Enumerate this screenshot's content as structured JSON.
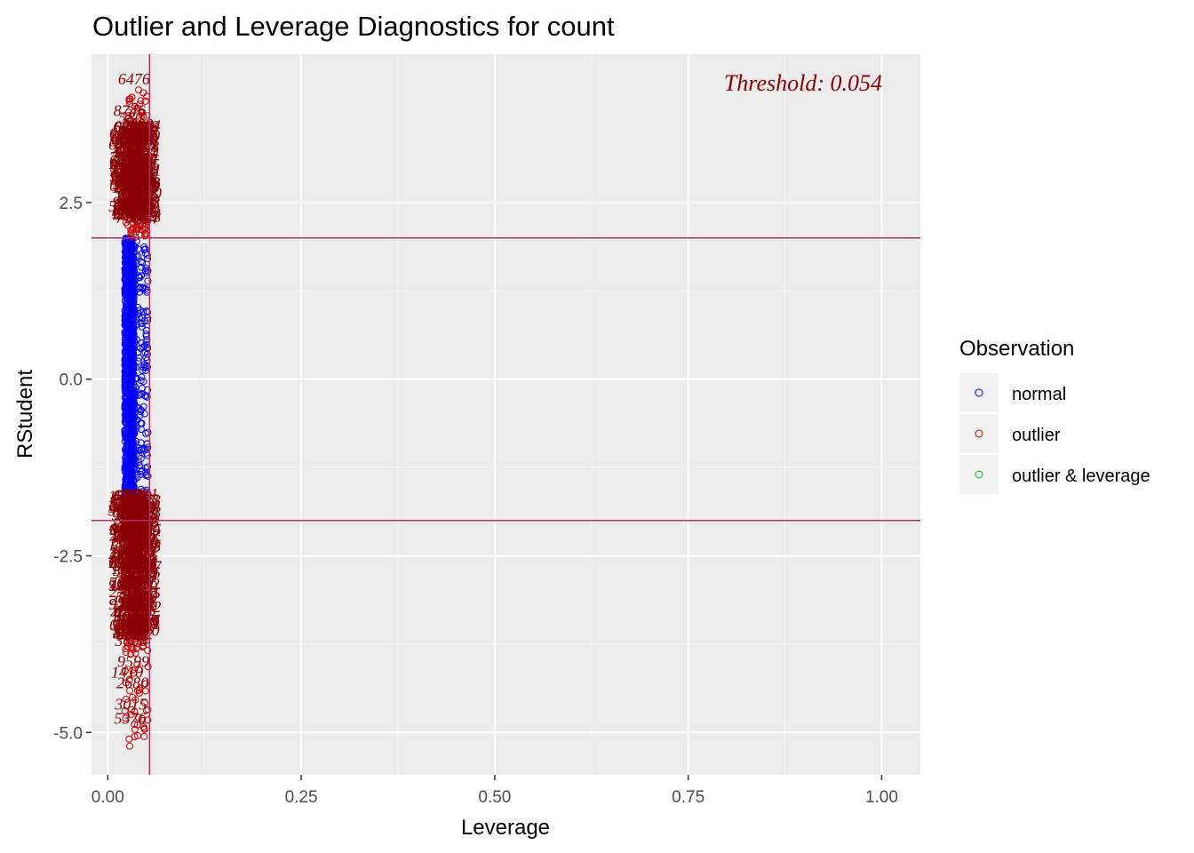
{
  "chart_data": {
    "type": "scatter",
    "title": "Outlier and Leverage Diagnostics for count",
    "xlabel": "Leverage",
    "ylabel": "RStudent",
    "xlim": [
      -0.021,
      1.05
    ],
    "ylim": [
      -5.6,
      4.6
    ],
    "x_ticks": [
      0.0,
      0.25,
      0.5,
      0.75,
      1.0
    ],
    "x_tick_labels": [
      "0.00",
      "0.25",
      "0.50",
      "0.75",
      "1.00"
    ],
    "y_ticks": [
      2.5,
      0.0,
      -2.5,
      -5.0
    ],
    "y_tick_labels": [
      "2.5",
      "0.0",
      "-2.5",
      "-5.0"
    ],
    "grid": true,
    "hlines": [
      2,
      -2
    ],
    "vline": 0.054,
    "reference_line_color": "#b03060",
    "annotation": "Threshold: 0.054",
    "legend": {
      "title": "Observation",
      "placement": "right",
      "entries": [
        {
          "label": "normal",
          "color": "#0000ff"
        },
        {
          "label": "outlier",
          "color": "#cc0000"
        },
        {
          "label": "outlier & leverage",
          "color": "#00cc00"
        }
      ]
    },
    "series": [
      {
        "name": "normal",
        "color": "#0000ff",
        "x_range": [
          0.022,
          0.052
        ],
        "y_range": [
          -2.0,
          2.0
        ],
        "n_points": 1400
      },
      {
        "name": "outlier",
        "color": "#cc0000",
        "x_range": [
          0.022,
          0.052
        ],
        "y_range": [
          -5.2,
          4.1
        ],
        "n_points": 500
      }
    ],
    "labeled_points": [
      {
        "label": "6476",
        "x": 0.034,
        "y": 4.1
      },
      {
        "label": "8746",
        "x": 0.028,
        "y": 3.65
      },
      {
        "label": "5802",
        "x": 0.035,
        "y": 3.55
      },
      {
        "label": "3608",
        "x": 0.03,
        "y": -3.85
      },
      {
        "label": "9599",
        "x": 0.033,
        "y": -4.15
      },
      {
        "label": "1410",
        "x": 0.025,
        "y": -4.3
      },
      {
        "label": "2680",
        "x": 0.032,
        "y": -4.45
      },
      {
        "label": "3015",
        "x": 0.03,
        "y": -4.75
      },
      {
        "label": "5376",
        "x": 0.029,
        "y": -4.95
      }
    ]
  }
}
